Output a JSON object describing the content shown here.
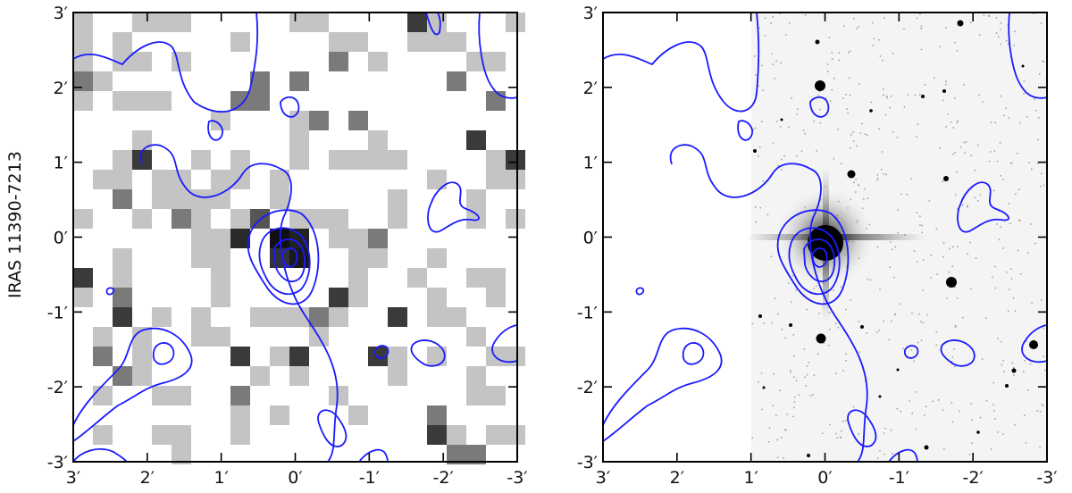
{
  "figure": {
    "row_label": "IRAS 11390-7213",
    "x_ticks": [
      "3′",
      "2′",
      "1′",
      "0′",
      "-1′",
      "-2′",
      "-3′"
    ],
    "y_ticks": [
      "3′",
      "2′",
      "1′",
      "0′",
      "-1′",
      "-2′",
      "-3′"
    ],
    "contour_color": "#1a1aff"
  },
  "panels": [
    {
      "id": "left",
      "image": "pixelated grey-scale map"
    },
    {
      "id": "right",
      "image": "optical grey-scale image with stars"
    }
  ]
}
